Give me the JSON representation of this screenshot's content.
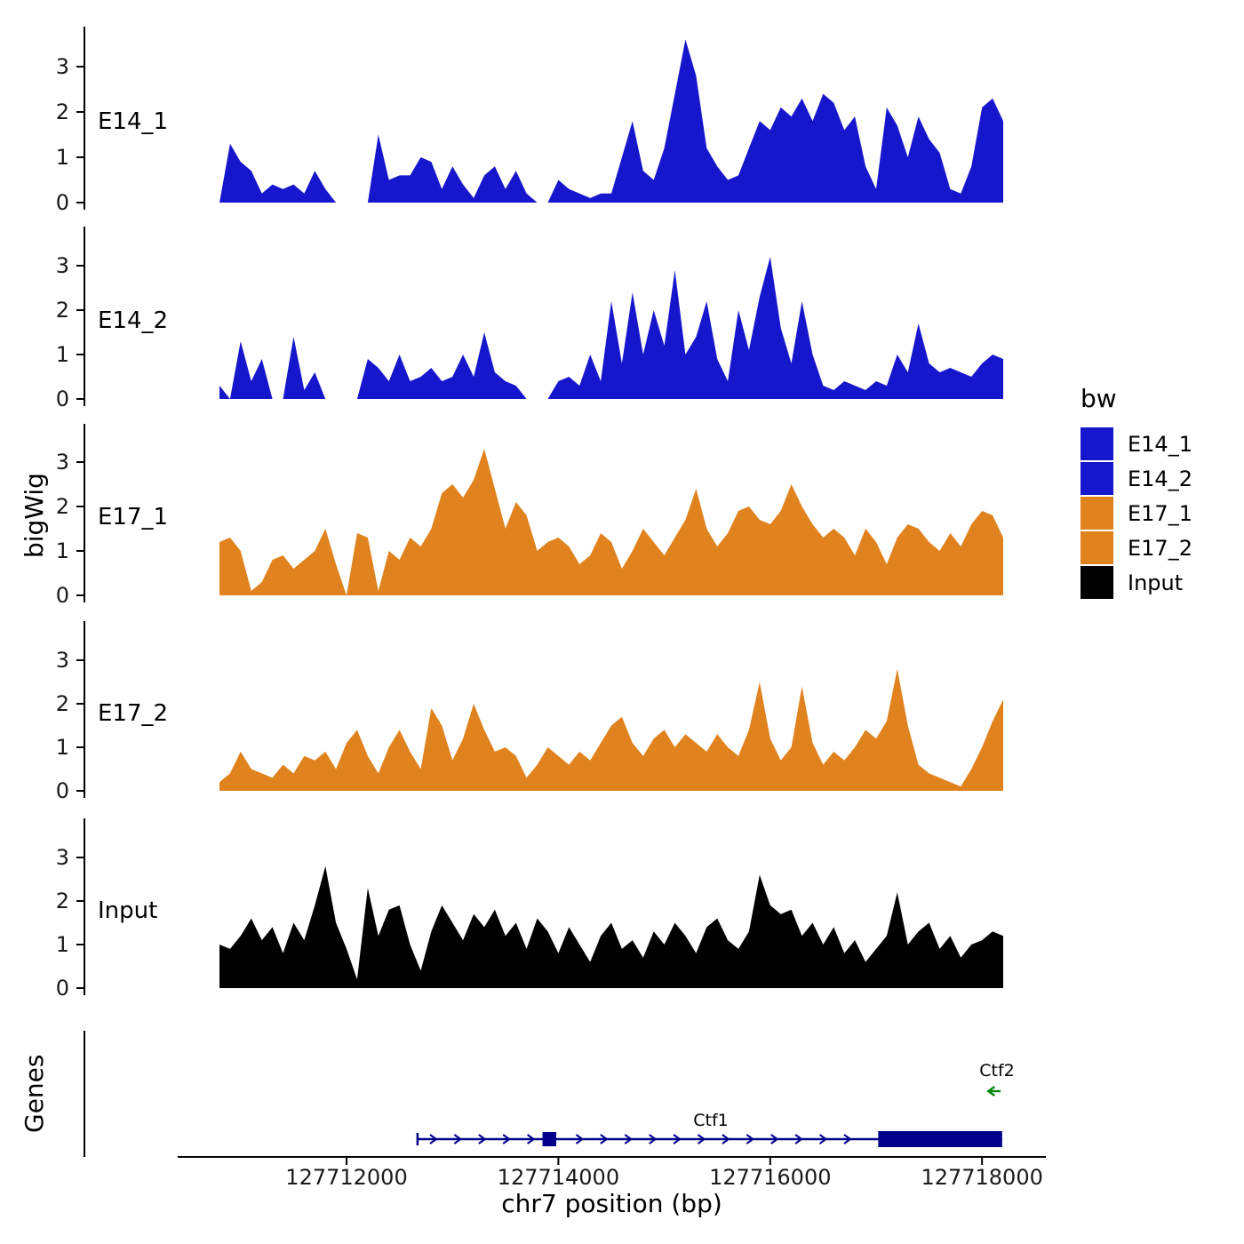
{
  "labels": {
    "y_axis_bigwig": "bigWig",
    "y_axis_genes": "Genes"
  },
  "chart_data": {
    "type": "area",
    "title": "",
    "xlabel": "chr7 position (bp)",
    "ylabel": "bigWig",
    "x_range": [
      127710800,
      127718200
    ],
    "x_step": 100,
    "ylim": [
      0,
      3.7
    ],
    "y_ticks": [
      0,
      1,
      2,
      3
    ],
    "x_ticks": [
      {
        "value": 127712000,
        "label": "127712000"
      },
      {
        "value": 127714000,
        "label": "127714000"
      },
      {
        "value": 127716000,
        "label": "127716000"
      },
      {
        "value": 127718000,
        "label": "127718000"
      }
    ],
    "legend_position": "right",
    "grid": false,
    "tracks": [
      {
        "name": "E14_1",
        "color": "#1616CC",
        "values": [
          0.0,
          1.3,
          0.9,
          0.7,
          0.2,
          0.4,
          0.3,
          0.4,
          0.2,
          0.7,
          0.3,
          0.0,
          0.0,
          0.0,
          0.0,
          1.5,
          0.5,
          0.6,
          0.6,
          1.0,
          0.9,
          0.3,
          0.8,
          0.4,
          0.1,
          0.6,
          0.8,
          0.3,
          0.7,
          0.2,
          0.0,
          0.0,
          0.5,
          0.3,
          0.2,
          0.1,
          0.2,
          0.2,
          1.0,
          1.8,
          0.7,
          0.5,
          1.2,
          2.4,
          3.6,
          2.8,
          1.2,
          0.8,
          0.5,
          0.6,
          1.2,
          1.8,
          1.6,
          2.1,
          1.9,
          2.3,
          1.8,
          2.4,
          2.2,
          1.6,
          1.9,
          0.8,
          0.3,
          2.1,
          1.7,
          1.0,
          1.9,
          1.4,
          1.1,
          0.3,
          0.2,
          0.8,
          2.1,
          2.3,
          1.8
        ]
      },
      {
        "name": "E14_2",
        "color": "#1616CC",
        "values": [
          0.3,
          0.0,
          1.3,
          0.4,
          0.9,
          0.0,
          0.0,
          1.4,
          0.2,
          0.6,
          0.0,
          0.0,
          0.0,
          0.0,
          0.9,
          0.7,
          0.4,
          1.0,
          0.4,
          0.5,
          0.7,
          0.4,
          0.5,
          1.0,
          0.5,
          1.5,
          0.6,
          0.4,
          0.3,
          0.0,
          0.0,
          0.0,
          0.4,
          0.5,
          0.3,
          1.0,
          0.4,
          2.2,
          0.8,
          2.4,
          1.0,
          2.0,
          1.2,
          2.9,
          1.0,
          1.4,
          2.2,
          0.9,
          0.4,
          2.0,
          1.1,
          2.3,
          3.2,
          1.6,
          0.8,
          2.2,
          1.0,
          0.3,
          0.2,
          0.4,
          0.3,
          0.2,
          0.4,
          0.3,
          1.0,
          0.6,
          1.7,
          0.8,
          0.6,
          0.7,
          0.6,
          0.5,
          0.8,
          1.0,
          0.9
        ]
      },
      {
        "name": "E17_1",
        "color": "#E0821E",
        "values": [
          1.2,
          1.3,
          1.0,
          0.1,
          0.3,
          0.8,
          0.9,
          0.6,
          0.8,
          1.0,
          1.5,
          0.7,
          0.0,
          1.4,
          1.3,
          0.1,
          1.0,
          0.8,
          1.3,
          1.1,
          1.5,
          2.3,
          2.5,
          2.2,
          2.6,
          3.3,
          2.4,
          1.5,
          2.1,
          1.8,
          1.0,
          1.2,
          1.3,
          1.1,
          0.7,
          0.9,
          1.4,
          1.2,
          0.6,
          1.0,
          1.5,
          1.2,
          0.9,
          1.3,
          1.7,
          2.4,
          1.5,
          1.1,
          1.4,
          1.9,
          2.0,
          1.7,
          1.6,
          1.9,
          2.5,
          2.0,
          1.6,
          1.3,
          1.5,
          1.3,
          0.9,
          1.5,
          1.2,
          0.7,
          1.3,
          1.6,
          1.5,
          1.2,
          1.0,
          1.4,
          1.1,
          1.6,
          1.9,
          1.8,
          1.3
        ]
      },
      {
        "name": "E17_2",
        "color": "#E0821E",
        "values": [
          0.2,
          0.4,
          0.9,
          0.5,
          0.4,
          0.3,
          0.6,
          0.4,
          0.8,
          0.7,
          0.9,
          0.5,
          1.1,
          1.4,
          0.8,
          0.4,
          1.0,
          1.4,
          0.9,
          0.5,
          1.9,
          1.5,
          0.7,
          1.2,
          2.0,
          1.4,
          0.9,
          1.0,
          0.8,
          0.3,
          0.6,
          1.0,
          0.8,
          0.6,
          0.9,
          0.7,
          1.1,
          1.5,
          1.7,
          1.1,
          0.8,
          1.2,
          1.4,
          1.0,
          1.3,
          1.1,
          0.9,
          1.3,
          1.0,
          0.8,
          1.4,
          2.5,
          1.2,
          0.7,
          1.0,
          2.4,
          1.1,
          0.6,
          0.9,
          0.7,
          1.0,
          1.4,
          1.2,
          1.6,
          2.8,
          1.5,
          0.6,
          0.4,
          0.3,
          0.2,
          0.1,
          0.5,
          1.0,
          1.6,
          2.1
        ]
      },
      {
        "name": "Input",
        "color": "#000000",
        "values": [
          1.0,
          0.9,
          1.2,
          1.6,
          1.1,
          1.4,
          0.8,
          1.5,
          1.1,
          1.9,
          2.8,
          1.5,
          0.9,
          0.2,
          2.3,
          1.2,
          1.8,
          1.9,
          1.0,
          0.4,
          1.3,
          1.9,
          1.5,
          1.1,
          1.7,
          1.4,
          1.8,
          1.2,
          1.5,
          0.9,
          1.6,
          1.3,
          0.8,
          1.4,
          1.0,
          0.6,
          1.2,
          1.5,
          0.9,
          1.1,
          0.7,
          1.3,
          1.0,
          1.5,
          1.2,
          0.8,
          1.4,
          1.6,
          1.1,
          0.9,
          1.3,
          2.6,
          1.9,
          1.7,
          1.8,
          1.2,
          1.5,
          1.0,
          1.4,
          0.8,
          1.1,
          0.6,
          0.9,
          1.2,
          2.2,
          1.0,
          1.3,
          1.5,
          0.9,
          1.2,
          0.7,
          1.0,
          1.1,
          1.3,
          1.2
        ]
      }
    ]
  },
  "genes_panel": {
    "label": "Genes",
    "genes": [
      {
        "name": "Ctf1",
        "strand": "+",
        "color": "#00008B",
        "start": 127712670,
        "end": 127718190,
        "exons": [
          {
            "start": 127713850,
            "end": 127713980
          },
          {
            "start": 127717020,
            "end": 127718190
          }
        ],
        "label_bp": 127715440
      },
      {
        "name": "Ctf2",
        "strand": "-",
        "color": "#0E8A0E",
        "start": 127718060,
        "end": 127718175
      }
    ]
  },
  "legend": {
    "title": "bw",
    "items": [
      {
        "label": "E14_1",
        "color": "#1616CC"
      },
      {
        "label": "E14_2",
        "color": "#1616CC"
      },
      {
        "label": "E17_1",
        "color": "#E0821E"
      },
      {
        "label": "E17_2",
        "color": "#E0821E"
      },
      {
        "label": "Input",
        "color": "#000000"
      }
    ]
  }
}
